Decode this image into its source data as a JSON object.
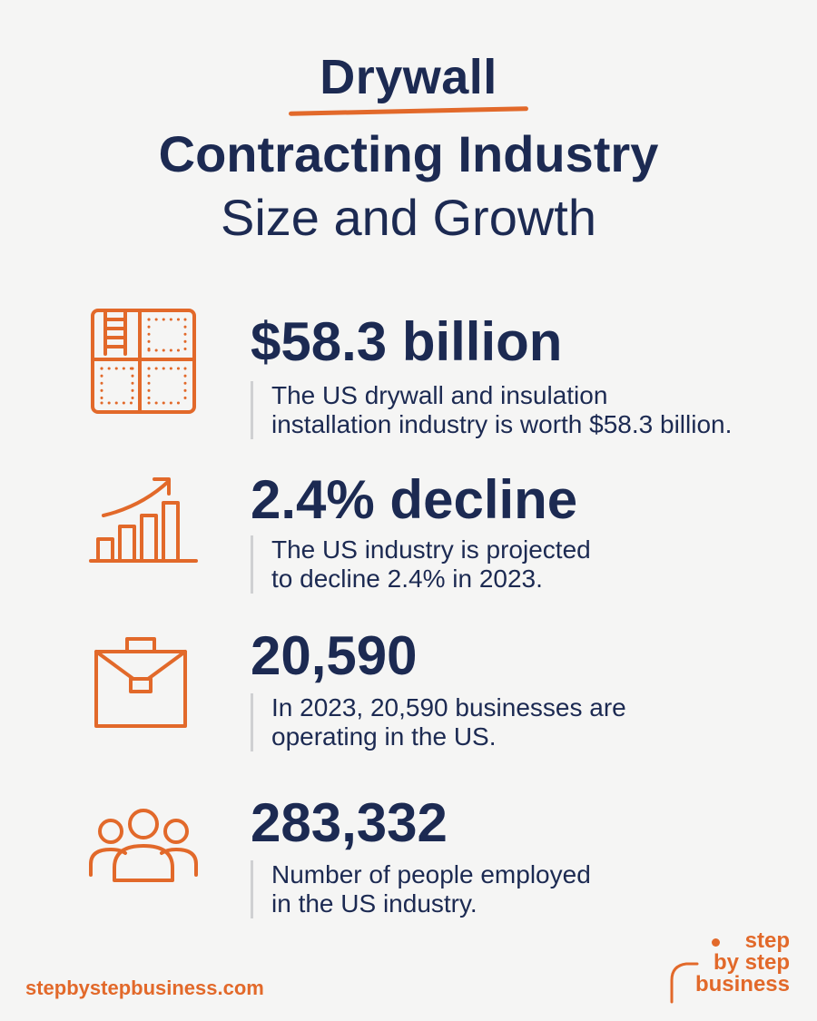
{
  "title": {
    "line1": "Drywall",
    "line2": "Contracting Industry",
    "line3": "Size and Growth"
  },
  "stats": [
    {
      "value": "$58.3 billion",
      "desc_line1": "The US drywall and insulation",
      "desc_line2": "installation industry is worth $58.3 billion.",
      "icon": "drywall-panel-icon"
    },
    {
      "value": "2.4% decline",
      "desc_line1": "The US industry is projected",
      "desc_line2": "to decline 2.4% in 2023.",
      "icon": "growth-chart-icon"
    },
    {
      "value": "20,590",
      "desc_line1": "In 2023, 20,590 businesses are",
      "desc_line2": "operating in the US.",
      "icon": "briefcase-icon"
    },
    {
      "value": "283,332",
      "desc_line1": "Number of people employed",
      "desc_line2": "in the US industry.",
      "icon": "people-group-icon"
    }
  ],
  "footer": {
    "url": "stepbystepbusiness.com",
    "logo_line1": "step",
    "logo_line2": "by step",
    "logo_line3": "business"
  },
  "colors": {
    "navy": "#1c2a52",
    "accent": "#e2692a",
    "background": "#f5f5f4"
  }
}
